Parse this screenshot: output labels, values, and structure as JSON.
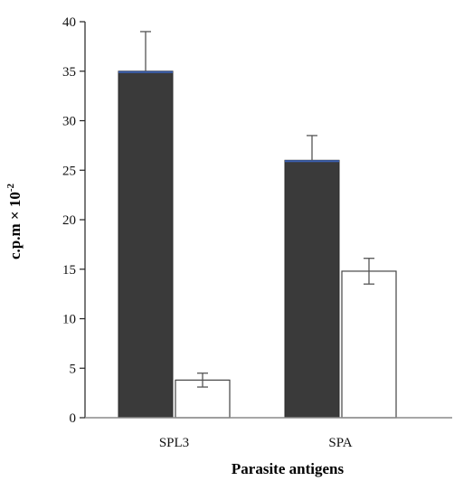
{
  "chart_data": {
    "type": "bar",
    "title": "",
    "xlabel": "Parasite antigens",
    "ylabel": "c.p.m × 10",
    "ylabel_exponent": "-2",
    "categories": [
      "SPL3",
      "SPA"
    ],
    "series": [
      {
        "values": [
          35,
          26
        ],
        "errors": [
          4,
          2.5
        ],
        "color": "#3a3a3a"
      },
      {
        "values": [
          3.8,
          14.8
        ],
        "errors": [
          0.7,
          1.3
        ],
        "color": "#ffffff"
      }
    ],
    "ylim": [
      0,
      40
    ],
    "yticks": [
      0,
      5,
      10,
      15,
      20,
      25,
      30,
      35,
      40
    ],
    "grid": false,
    "legend": "none"
  }
}
